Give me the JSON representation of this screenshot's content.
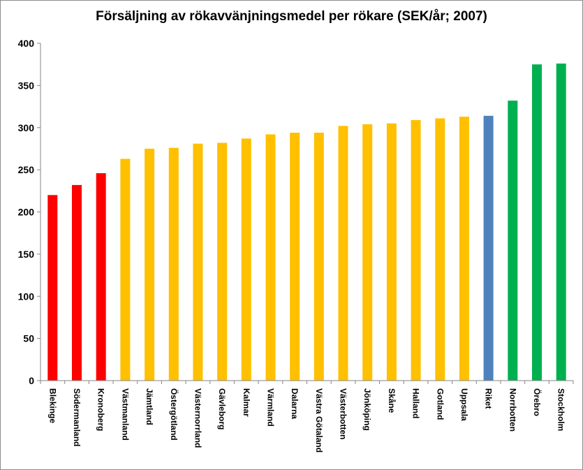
{
  "chart_data": {
    "type": "bar",
    "title": "Försäljning av rökavvänjningsmedel per rökare (SEK/år; 2007)",
    "xlabel": "",
    "ylabel": "",
    "ylim": [
      0,
      400
    ],
    "yticks": [
      0,
      50,
      100,
      150,
      200,
      250,
      300,
      350,
      400
    ],
    "grid": false,
    "legend": "none",
    "categories": [
      "Blekinge",
      "Södermanland",
      "Kronoberg",
      "Västmanland",
      "Jämtland",
      "Östergötland",
      "Västernorrland",
      "Gävleborg",
      "Kalmar",
      "Värmland",
      "Dalarna",
      "Västra Götaland",
      "Västerbotten",
      "Jönköping",
      "Skåne",
      "Halland",
      "Gotland",
      "Uppsala",
      "Riket",
      "Norrbotten",
      "Örebro",
      "Stockholm"
    ],
    "values": [
      220,
      232,
      246,
      263,
      275,
      276,
      281,
      282,
      287,
      292,
      294,
      294,
      302,
      304,
      305,
      309,
      311,
      313,
      314,
      332,
      375,
      376
    ],
    "bar_colors": [
      "#ff0000",
      "#ff0000",
      "#ff0000",
      "#ffc000",
      "#ffc000",
      "#ffc000",
      "#ffc000",
      "#ffc000",
      "#ffc000",
      "#ffc000",
      "#ffc000",
      "#ffc000",
      "#ffc000",
      "#ffc000",
      "#ffc000",
      "#ffc000",
      "#ffc000",
      "#ffc000",
      "#4f81bd",
      "#00b050",
      "#00b050",
      "#00b050"
    ]
  }
}
